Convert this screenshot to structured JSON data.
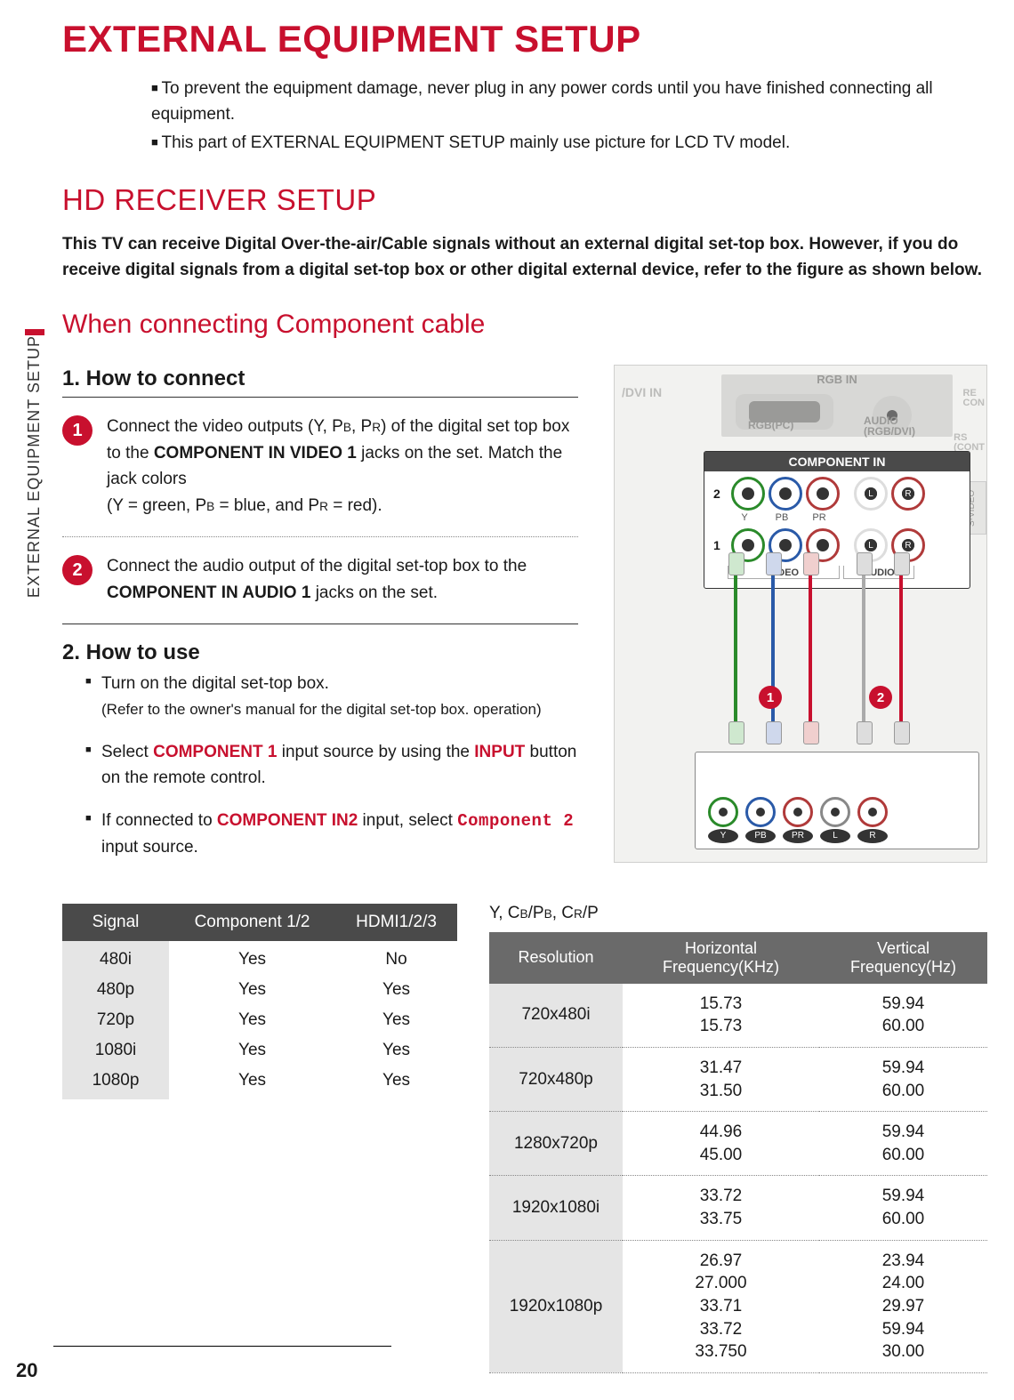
{
  "page": {
    "number": "20",
    "sidebar": "EXTERNAL EQUIPMENT SETUP",
    "title": "EXTERNAL EQUIPMENT SETUP",
    "intro": [
      "To prevent the equipment damage, never plug in any power cords until you have finished connecting all equipment.",
      "This part of EXTERNAL EQUIPMENT SETUP mainly use picture for LCD TV model."
    ],
    "h2": "HD RECEIVER SETUP",
    "lead": "This TV can receive Digital Over-the-air/Cable signals without an external digital set-top box. However, if you do receive digital signals from a digital set-top box or other digital external device, refer to the figure as shown below.",
    "h3": "When connecting Component cable",
    "step1_title": "1. How to connect",
    "steps": [
      {
        "num": "1",
        "pre": "Connect the video outputs (Y, P",
        "pb": "B",
        "mid": ", P",
        "pr": "R",
        "post1": ") of the digital set top box to the ",
        "bold1": "COMPONENT IN VIDEO 1",
        "post2": " jacks on the set. Match the jack colors",
        "line2a": "(Y = green, P",
        "line2b": " = blue, and P",
        "line2c": " = red)."
      },
      {
        "num": "2",
        "pre": "Connect the audio output of the digital set-top box to the ",
        "bold": "COMPONENT IN AUDIO 1",
        "post": " jacks on the set."
      }
    ],
    "step2_title": "2. How to use",
    "use": [
      {
        "line1": "Turn on the digital set-top box.",
        "line2": "(Refer to the owner's manual for the digital set-top box. operation)"
      },
      {
        "pre": "Select ",
        "red1": "COMPONENT 1",
        "mid": " input source by using the ",
        "red2": "INPUT",
        "post": " button on the remote control."
      },
      {
        "pre": "If connected to ",
        "red1": "COMPONENT IN2",
        "mid": " input, select ",
        "red2": "Component 2",
        "post": " input source."
      }
    ]
  },
  "signal_table": {
    "headers": [
      "Signal",
      "Component 1/2",
      "HDMI1/2/3"
    ],
    "rows": [
      [
        "480i",
        "Yes",
        "No"
      ],
      [
        "480p",
        "Yes",
        "Yes"
      ],
      [
        "720p",
        "Yes",
        "Yes"
      ],
      [
        "1080i",
        "Yes",
        "Yes"
      ],
      [
        "1080p",
        "Yes",
        "Yes"
      ]
    ]
  },
  "freq_table": {
    "caption_pre": "Y, C",
    "caption_b": "B",
    "caption_mid1": "/P",
    "caption_mid2": ", C",
    "caption_r": "R",
    "caption_mid3": "/P",
    "headers": [
      "Resolution",
      "Horizontal Frequency(KHz)",
      "Vertical Frequency(Hz)"
    ],
    "rows": [
      {
        "res": "720x480i",
        "h": [
          "15.73",
          "15.73"
        ],
        "v": [
          "59.94",
          "60.00"
        ]
      },
      {
        "res": "720x480p",
        "h": [
          "31.47",
          "31.50"
        ],
        "v": [
          "59.94",
          "60.00"
        ]
      },
      {
        "res": "1280x720p",
        "h": [
          "44.96",
          "45.00"
        ],
        "v": [
          "59.94",
          "60.00"
        ]
      },
      {
        "res": "1920x1080i",
        "h": [
          "33.72",
          "33.75"
        ],
        "v": [
          "59.94",
          "60.00"
        ]
      },
      {
        "res": "1920x1080p",
        "h": [
          "26.97",
          "27.000",
          "33.71",
          "33.72",
          "33.750"
        ],
        "v": [
          "23.94",
          "24.00",
          "29.97",
          "59.94",
          "30.00"
        ]
      }
    ]
  },
  "diagram": {
    "labels": {
      "dvi_in": "/DVI IN",
      "rgb_in": "RGB IN",
      "rgb_pc": "RGB(PC)",
      "audio_rgbdvi_l1": "AUDIO",
      "audio_rgbdvi_l2": "(RGB/DVI)",
      "component_in": "COMPONENT IN",
      "row2": "2",
      "row1": "1",
      "y": "Y",
      "pb": "PB",
      "pr": "PR",
      "video": "VIDEO",
      "audio": "AUDIO",
      "svideo": "S-VIDEO",
      "recon_l1": "RE",
      "recon_l2": "CON",
      "rs_l1": "RS",
      "rs_l2": "(CONT",
      "num1": "1",
      "num2": "2",
      "stb_y": "Y",
      "stb_pb": "PB",
      "stb_pr": "PR",
      "stb_l": "L",
      "stb_r": "R"
    },
    "colors": {
      "brand_red": "#c8102e",
      "green": "#2a8a2a",
      "blue": "#2a5aa8",
      "red": "#b03a3a",
      "header_dark": "#4a4a4a",
      "header_mid": "#6a6a6a",
      "cell_grey": "#e5e5e5",
      "panel_bg": "#f2f2f0"
    }
  }
}
